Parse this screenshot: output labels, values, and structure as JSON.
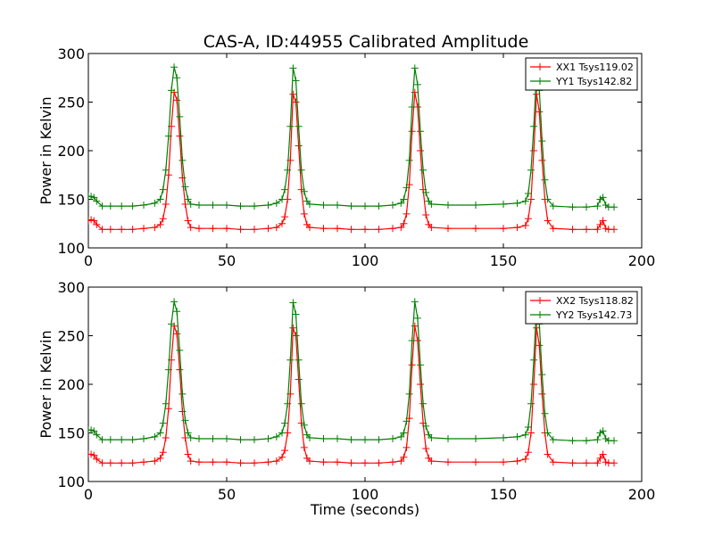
{
  "title": "CAS-A, ID:44955 Calibrated Amplitude",
  "colors": {
    "red": "#ff0000",
    "green": "#008000"
  },
  "chart_data": [
    {
      "type": "line",
      "title": "CAS-A, ID:44955 Calibrated Amplitude",
      "xlabel": "",
      "ylabel": "Power in Kelvin",
      "xlim": [
        0,
        200
      ],
      "ylim": [
        100,
        300
      ],
      "xticks": [
        0,
        50,
        100,
        150,
        200
      ],
      "yticks": [
        100,
        150,
        200,
        250,
        300
      ],
      "legend_position": "top-right",
      "series": [
        {
          "name": "XX1 Tsys119.02",
          "color": "#ff0000",
          "marker": "+",
          "x": [
            0,
            1,
            2,
            3,
            5,
            8,
            12,
            16,
            20,
            24,
            26,
            27,
            28,
            29,
            30,
            31,
            32,
            33,
            34,
            35,
            36,
            37,
            40,
            45,
            50,
            55,
            60,
            65,
            68,
            70,
            71,
            72,
            73,
            74,
            75,
            76,
            77,
            78,
            79,
            80,
            85,
            90,
            95,
            100,
            105,
            110,
            113,
            114,
            115,
            116,
            117,
            118,
            119,
            120,
            121,
            122,
            123,
            124,
            130,
            140,
            150,
            155,
            158,
            159,
            160,
            161,
            162,
            163,
            164,
            165,
            166,
            168,
            175,
            180,
            184,
            185,
            186,
            187,
            188,
            190
          ],
          "y": [
            128,
            129,
            128,
            124,
            119,
            119,
            119,
            119,
            120,
            121,
            124,
            130,
            145,
            175,
            225,
            260,
            252,
            215,
            172,
            145,
            128,
            121,
            120,
            120,
            120,
            119,
            119,
            120,
            121,
            125,
            132,
            150,
            190,
            258,
            250,
            205,
            160,
            135,
            124,
            121,
            120,
            120,
            119,
            119,
            119,
            120,
            121,
            125,
            135,
            165,
            220,
            260,
            245,
            200,
            160,
            134,
            124,
            121,
            120,
            120,
            120,
            121,
            123,
            130,
            150,
            200,
            258,
            240,
            190,
            150,
            128,
            120,
            119,
            119,
            119,
            124,
            128,
            120,
            119,
            119
          ]
        },
        {
          "name": "YY1 Tsys142.82",
          "color": "#008000",
          "marker": "+",
          "x": [
            0,
            1,
            2,
            3,
            5,
            8,
            12,
            16,
            20,
            24,
            26,
            27,
            28,
            29,
            30,
            31,
            32,
            33,
            34,
            35,
            36,
            37,
            40,
            45,
            50,
            55,
            60,
            65,
            68,
            70,
            71,
            72,
            73,
            74,
            75,
            76,
            77,
            78,
            79,
            80,
            85,
            90,
            95,
            100,
            105,
            110,
            113,
            114,
            115,
            116,
            117,
            118,
            119,
            120,
            121,
            122,
            123,
            124,
            130,
            140,
            150,
            155,
            158,
            159,
            160,
            161,
            162,
            163,
            164,
            165,
            166,
            168,
            175,
            180,
            184,
            185,
            186,
            187,
            188,
            190
          ],
          "y": [
            153,
            153,
            152,
            148,
            143,
            143,
            143,
            143,
            144,
            146,
            150,
            160,
            180,
            215,
            262,
            286,
            275,
            235,
            190,
            163,
            150,
            145,
            144,
            144,
            144,
            143,
            143,
            144,
            146,
            150,
            160,
            180,
            225,
            285,
            272,
            225,
            180,
            158,
            148,
            145,
            144,
            144,
            143,
            143,
            143,
            144,
            146,
            150,
            162,
            190,
            245,
            285,
            268,
            220,
            180,
            157,
            148,
            145,
            144,
            144,
            145,
            146,
            148,
            156,
            180,
            225,
            282,
            262,
            210,
            170,
            150,
            143,
            142,
            142,
            143,
            150,
            152,
            144,
            142,
            142
          ]
        }
      ]
    },
    {
      "type": "line",
      "title": "",
      "xlabel": "Time (seconds)",
      "ylabel": "Power in Kelvin",
      "xlim": [
        0,
        200
      ],
      "ylim": [
        100,
        300
      ],
      "xticks": [
        0,
        50,
        100,
        150,
        200
      ],
      "yticks": [
        100,
        150,
        200,
        250,
        300
      ],
      "legend_position": "top-right",
      "series": [
        {
          "name": "XX2 Tsys118.82",
          "color": "#ff0000",
          "marker": "+",
          "x": [
            0,
            1,
            2,
            3,
            5,
            8,
            12,
            16,
            20,
            24,
            26,
            27,
            28,
            29,
            30,
            31,
            32,
            33,
            34,
            35,
            36,
            37,
            40,
            45,
            50,
            55,
            60,
            65,
            68,
            70,
            71,
            72,
            73,
            74,
            75,
            76,
            77,
            78,
            79,
            80,
            85,
            90,
            95,
            100,
            105,
            110,
            113,
            114,
            115,
            116,
            117,
            118,
            119,
            120,
            121,
            122,
            123,
            124,
            130,
            140,
            150,
            155,
            158,
            159,
            160,
            161,
            162,
            163,
            164,
            165,
            166,
            168,
            175,
            180,
            184,
            185,
            186,
            187,
            188,
            190
          ],
          "y": [
            128,
            128,
            127,
            123,
            119,
            119,
            119,
            119,
            120,
            121,
            124,
            130,
            145,
            175,
            225,
            260,
            252,
            215,
            172,
            145,
            128,
            121,
            120,
            120,
            120,
            119,
            119,
            120,
            121,
            125,
            132,
            150,
            190,
            258,
            250,
            205,
            160,
            135,
            124,
            121,
            120,
            120,
            119,
            119,
            119,
            120,
            121,
            125,
            135,
            165,
            220,
            260,
            245,
            200,
            160,
            134,
            124,
            121,
            120,
            120,
            120,
            121,
            123,
            130,
            150,
            200,
            258,
            240,
            190,
            150,
            128,
            120,
            119,
            119,
            119,
            124,
            128,
            120,
            119,
            119
          ]
        },
        {
          "name": "YY2 Tsys142.73",
          "color": "#008000",
          "marker": "+",
          "x": [
            0,
            1,
            2,
            3,
            5,
            8,
            12,
            16,
            20,
            24,
            26,
            27,
            28,
            29,
            30,
            31,
            32,
            33,
            34,
            35,
            36,
            37,
            40,
            45,
            50,
            55,
            60,
            65,
            68,
            70,
            71,
            72,
            73,
            74,
            75,
            76,
            77,
            78,
            79,
            80,
            85,
            90,
            95,
            100,
            105,
            110,
            113,
            114,
            115,
            116,
            117,
            118,
            119,
            120,
            121,
            122,
            123,
            124,
            130,
            140,
            150,
            155,
            158,
            159,
            160,
            161,
            162,
            163,
            164,
            165,
            166,
            168,
            175,
            180,
            184,
            185,
            186,
            187,
            188,
            190
          ],
          "y": [
            153,
            153,
            152,
            148,
            143,
            143,
            143,
            143,
            144,
            146,
            150,
            160,
            180,
            215,
            262,
            285,
            275,
            235,
            190,
            163,
            150,
            145,
            144,
            144,
            144,
            143,
            143,
            144,
            146,
            150,
            160,
            180,
            225,
            284,
            272,
            225,
            180,
            158,
            148,
            145,
            144,
            144,
            143,
            143,
            143,
            144,
            146,
            150,
            162,
            190,
            245,
            285,
            268,
            220,
            180,
            157,
            148,
            145,
            144,
            144,
            145,
            146,
            148,
            156,
            180,
            225,
            282,
            262,
            210,
            170,
            150,
            143,
            142,
            142,
            143,
            150,
            152,
            144,
            142,
            142
          ]
        }
      ]
    }
  ]
}
